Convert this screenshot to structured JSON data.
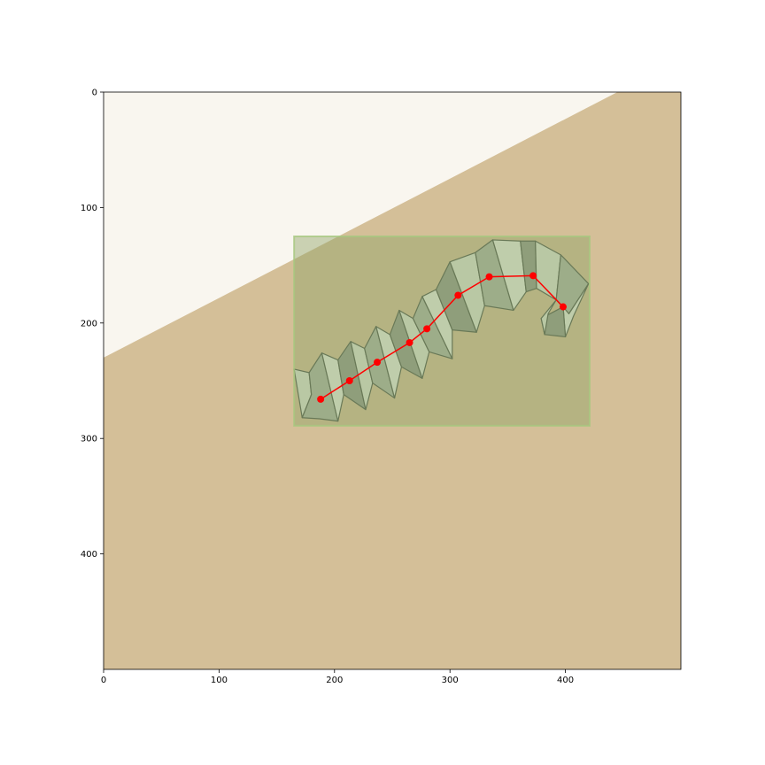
{
  "chart_data": {
    "type": "scatter",
    "title": "",
    "xlabel": "",
    "ylabel": "",
    "xlim": [
      0,
      500
    ],
    "ylim": [
      500,
      0
    ],
    "y_inverted": true,
    "grid": false,
    "legend": "none",
    "x_ticks": [
      0,
      100,
      200,
      300,
      400
    ],
    "y_ticks": [
      0,
      100,
      200,
      300,
      400
    ],
    "x_tick_labels": [
      "0",
      "100",
      "200",
      "300",
      "400"
    ],
    "y_tick_labels": [
      "0",
      "100",
      "200",
      "300",
      "400"
    ],
    "background_regions": [
      {
        "name": "light-region",
        "color": "#f9f6ef",
        "polygon": [
          [
            0,
            0
          ],
          [
            445,
            0
          ],
          [
            0,
            230
          ]
        ]
      },
      {
        "name": "tan-region",
        "color": "#d4bf98",
        "polygon": [
          [
            445,
            0
          ],
          [
            500,
            0
          ],
          [
            500,
            500
          ],
          [
            0,
            500
          ],
          [
            0,
            230
          ]
        ]
      }
    ],
    "bounding_box": {
      "x0": 165,
      "y0": 125,
      "x1": 421,
      "y1": 289,
      "fill": "#90a468",
      "stroke": "#a6c880"
    },
    "keypoints": {
      "color": "#ff0000",
      "x": [
        188,
        213,
        237,
        265,
        280,
        307,
        334,
        372,
        398
      ],
      "y": [
        266,
        250,
        234,
        217,
        205,
        176,
        160,
        159,
        186
      ]
    },
    "paper_folds": [
      {
        "pts": [
          [
            165,
            240
          ],
          [
            178,
            243
          ],
          [
            180,
            262
          ],
          [
            172,
            282
          ],
          [
            165,
            240
          ]
        ]
      },
      {
        "pts": [
          [
            178,
            243
          ],
          [
            189,
            226
          ],
          [
            203,
            285
          ],
          [
            187,
            283
          ],
          [
            172,
            282
          ],
          [
            180,
            262
          ]
        ]
      },
      {
        "pts": [
          [
            189,
            226
          ],
          [
            203,
            232
          ],
          [
            208,
            262
          ],
          [
            203,
            285
          ]
        ]
      },
      {
        "pts": [
          [
            203,
            232
          ],
          [
            214,
            216
          ],
          [
            227,
            275
          ],
          [
            208,
            262
          ]
        ]
      },
      {
        "pts": [
          [
            214,
            216
          ],
          [
            226,
            222
          ],
          [
            233,
            252
          ],
          [
            227,
            275
          ]
        ]
      },
      {
        "pts": [
          [
            226,
            222
          ],
          [
            236,
            203
          ],
          [
            252,
            265
          ],
          [
            233,
            252
          ]
        ]
      },
      {
        "pts": [
          [
            236,
            203
          ],
          [
            248,
            210
          ],
          [
            258,
            238
          ],
          [
            252,
            265
          ]
        ]
      },
      {
        "pts": [
          [
            248,
            210
          ],
          [
            256,
            189
          ],
          [
            276,
            248
          ],
          [
            258,
            238
          ]
        ]
      },
      {
        "pts": [
          [
            256,
            189
          ],
          [
            268,
            196
          ],
          [
            282,
            225
          ],
          [
            276,
            248
          ]
        ]
      },
      {
        "pts": [
          [
            268,
            196
          ],
          [
            276,
            177
          ],
          [
            302,
            231
          ],
          [
            282,
            225
          ]
        ]
      },
      {
        "pts": [
          [
            276,
            177
          ],
          [
            288,
            171
          ],
          [
            302,
            206
          ],
          [
            302,
            231
          ]
        ]
      },
      {
        "pts": [
          [
            288,
            171
          ],
          [
            300,
            147
          ],
          [
            323,
            208
          ],
          [
            302,
            206
          ]
        ]
      },
      {
        "pts": [
          [
            300,
            147
          ],
          [
            322,
            139
          ],
          [
            330,
            185
          ],
          [
            323,
            208
          ]
        ]
      },
      {
        "pts": [
          [
            322,
            139
          ],
          [
            337,
            128
          ],
          [
            355,
            189
          ],
          [
            330,
            185
          ]
        ]
      },
      {
        "pts": [
          [
            337,
            128
          ],
          [
            361,
            129
          ],
          [
            366,
            173
          ],
          [
            355,
            189
          ]
        ]
      },
      {
        "pts": [
          [
            361,
            129
          ],
          [
            374,
            129
          ],
          [
            375,
            170
          ],
          [
            366,
            173
          ]
        ]
      },
      {
        "pts": [
          [
            374,
            129
          ],
          [
            396,
            141
          ],
          [
            392,
            180
          ],
          [
            375,
            170
          ]
        ]
      },
      {
        "pts": [
          [
            396,
            141
          ],
          [
            420,
            166
          ],
          [
            403,
            192
          ],
          [
            392,
            180
          ]
        ]
      },
      {
        "pts": [
          [
            420,
            166
          ],
          [
            407,
            194
          ],
          [
            400,
            212
          ],
          [
            398,
            186
          ],
          [
            403,
            192
          ]
        ]
      },
      {
        "pts": [
          [
            398,
            186
          ],
          [
            400,
            212
          ],
          [
            382,
            210
          ],
          [
            379,
            196
          ]
        ]
      },
      {
        "pts": [
          [
            379,
            196
          ],
          [
            392,
            180
          ],
          [
            385,
            192
          ],
          [
            382,
            210
          ]
        ]
      }
    ]
  }
}
